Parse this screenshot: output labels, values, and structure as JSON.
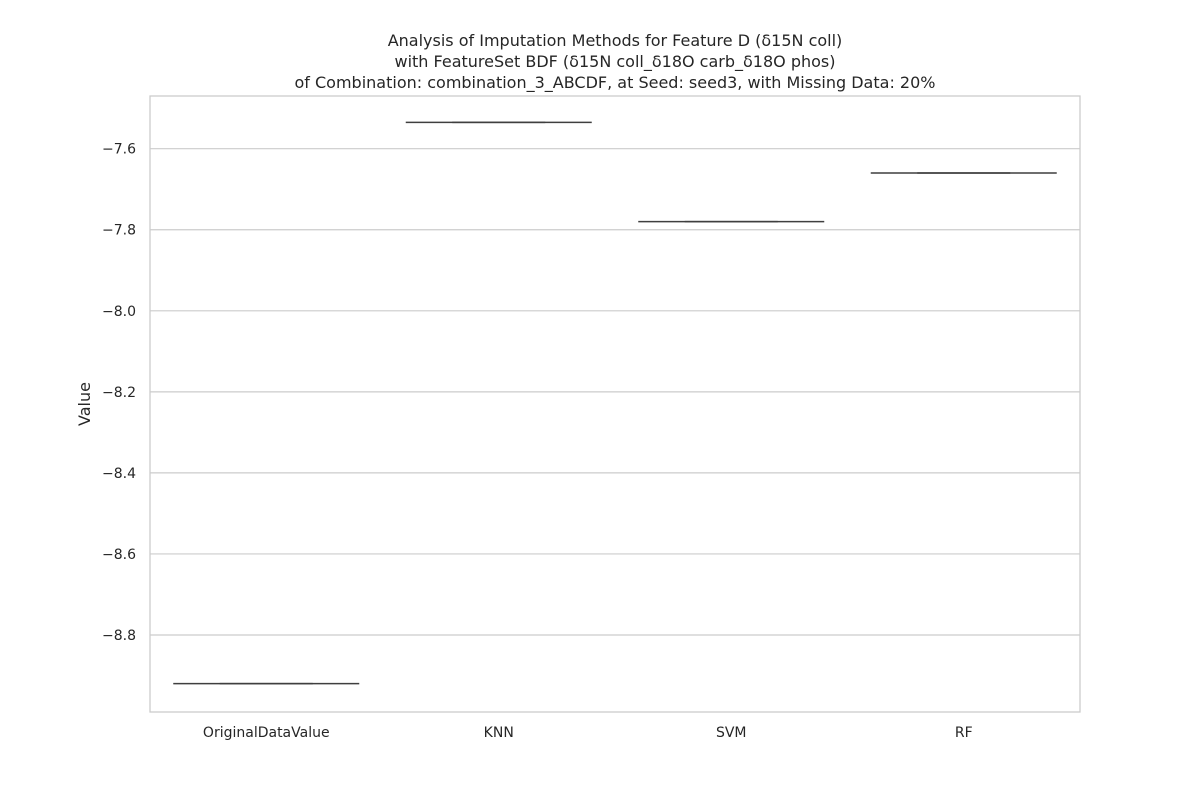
{
  "chart_data": {
    "type": "box",
    "title_lines": [
      "Analysis of Imputation Methods for Feature D (δ15N coll)",
      "with FeatureSet BDF (δ15N coll_δ18O carb_δ18O phos)",
      "of Combination: combination_3_ABCDF, at Seed: seed3, with Missing Data: 20%"
    ],
    "xlabel": "",
    "ylabel": "Value",
    "categories": [
      "OriginalDataValue",
      "KNN",
      "SVM",
      "RF"
    ],
    "values": [
      -8.92,
      -7.535,
      -7.78,
      -7.66
    ],
    "ylim": [
      -8.99,
      -7.47
    ],
    "yticks": [
      -7.6,
      -7.8,
      -8.0,
      -8.2,
      -8.4,
      -8.6,
      -8.8
    ],
    "ytick_labels": [
      "−7.6",
      "−7.8",
      "−8.0",
      "−8.2",
      "−8.4",
      "−8.6",
      "−8.8"
    ],
    "grid": true,
    "colors": {
      "grid": "#cccccc",
      "frame": "#cccccc",
      "box_line": "#3f3f3f",
      "text": "#262626"
    }
  }
}
